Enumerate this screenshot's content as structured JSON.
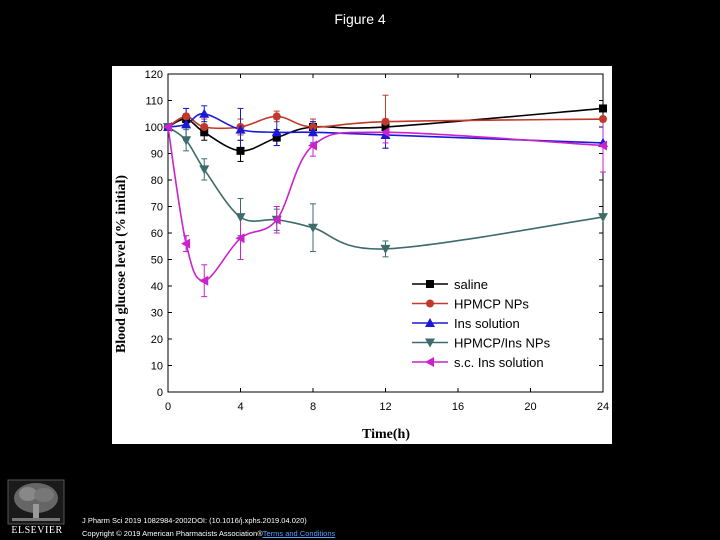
{
  "page": {
    "title": "Figure 4"
  },
  "citation": {
    "line1": "J Pharm Sci 2019 1082984-2002DOI: (10.1016/j.xphs.2019.04.020)",
    "line2_prefix": "Copyright © 2019 American Pharmacists Association®",
    "link": "Terms and Conditions"
  },
  "logo": {
    "word": "ELSEVIER"
  },
  "chart_data": {
    "type": "line",
    "xlabel": "Time(h)",
    "ylabel": "Blood glucose level (% initial)",
    "xlim": [
      0,
      24
    ],
    "ylim": [
      0,
      120
    ],
    "x_ticks": [
      0,
      4,
      8,
      12,
      16,
      20,
      24
    ],
    "x_tick_labels": [
      "0",
      "4",
      "8",
      "12",
      "16",
      "20",
      "24"
    ],
    "y_ticks": [
      0,
      10,
      20,
      30,
      40,
      50,
      60,
      70,
      80,
      90,
      100,
      110,
      120
    ],
    "legend_position": "bottom-right",
    "series": [
      {
        "name": "saline",
        "color": "#000000",
        "marker": "square",
        "x": [
          0,
          1,
          2,
          4,
          6,
          8,
          12,
          24
        ],
        "y": [
          100,
          103,
          98,
          91,
          96,
          100,
          100,
          107
        ],
        "err": [
          1,
          2,
          3,
          4,
          3,
          2,
          3,
          0
        ]
      },
      {
        "name": "HPMCP NPs",
        "color": "#c0392b",
        "marker": "circle",
        "x": [
          0,
          1,
          2,
          4,
          6,
          8,
          12,
          24
        ],
        "y": [
          100,
          104,
          100,
          100,
          104,
          100,
          102,
          103
        ],
        "err": [
          1,
          3,
          3,
          3,
          2,
          3,
          10,
          1
        ]
      },
      {
        "name": "Ins solution",
        "color": "#1a1ad6",
        "marker": "triangle-up",
        "x": [
          0,
          1,
          2,
          4,
          6,
          8,
          12,
          24
        ],
        "y": [
          100,
          101,
          105,
          99,
          98,
          98,
          97,
          94
        ],
        "err": [
          1,
          6,
          3,
          8,
          5,
          4,
          5,
          0
        ]
      },
      {
        "name": "HPMCP/Ins NPs",
        "color": "#3e6b6b",
        "marker": "triangle-down",
        "x": [
          0,
          1,
          2,
          4,
          6,
          8,
          12,
          24
        ],
        "y": [
          100,
          95,
          84,
          66,
          65,
          62,
          54,
          66
        ],
        "err": [
          1,
          4,
          4,
          7,
          4,
          9,
          3,
          0
        ]
      },
      {
        "name": "s.c. Ins solution",
        "color": "#cc22cc",
        "marker": "triangle-left",
        "x": [
          0,
          1,
          2,
          4,
          6,
          8,
          12,
          24
        ],
        "y": [
          100,
          56,
          42,
          58,
          65,
          93,
          98,
          93
        ],
        "err": [
          1,
          3,
          6,
          8,
          5,
          4,
          4,
          10
        ]
      }
    ]
  }
}
